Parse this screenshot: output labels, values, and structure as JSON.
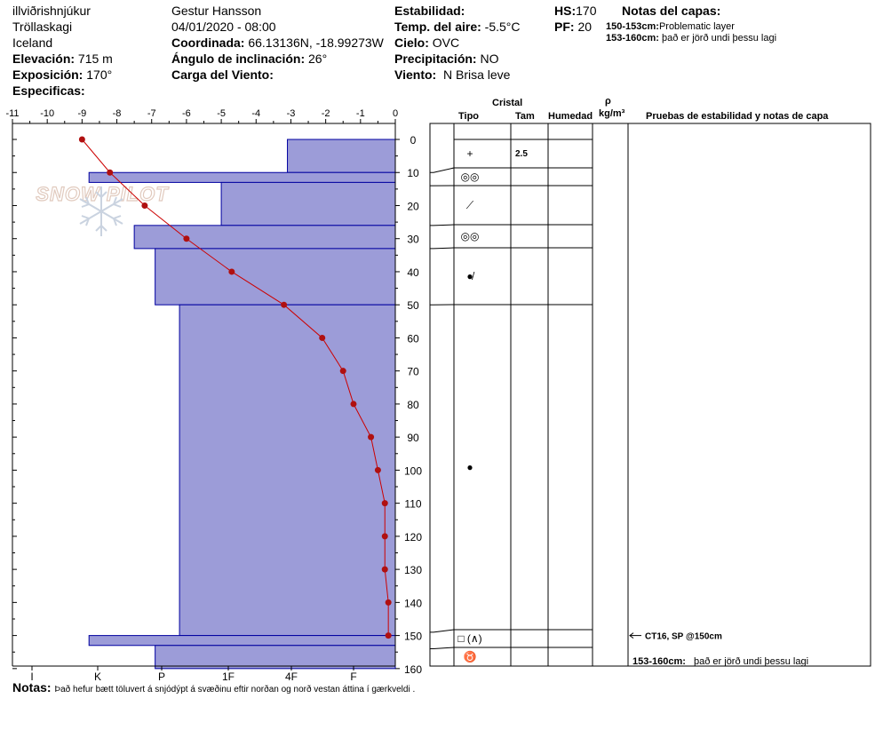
{
  "header": {
    "location": "illviðrishnjúkur",
    "region": "Tröllaskagi",
    "country": "Iceland",
    "elevation_label": "Elevación:",
    "elevation_value": "715 m",
    "aspect_label": "Exposición:",
    "aspect_value": "170°",
    "specifics_label": "Especificas:",
    "observer": "Gestur Hansson",
    "datetime": "04/01/2020 - 08:00",
    "coord_label": "Coordinada:",
    "coord_value": "66.13136N, -18.99273W",
    "slope_label": "Ángulo de inclinación:",
    "slope_value": "26°",
    "wind_load_label": "Carga del Viento:",
    "stability_label": "Estabilidad:",
    "air_temp_label": "Temp. del aire:",
    "air_temp_value": "-5.5°C",
    "sky_label": "Cielo:",
    "sky_value": "OVC",
    "precip_label": "Precipitación:",
    "precip_value": "NO",
    "wind_label": "Viento:",
    "wind_value": "N Brisa leve",
    "hs_label": "HS:",
    "hs_value": "170",
    "pf_label": "PF:",
    "pf_value": "20",
    "layer_notes_title": "Notas del capas:",
    "layer_notes": [
      {
        "range": "150-153cm:",
        "text": "Problematic layer"
      },
      {
        "range": "153-160cm:",
        "text": "það er jörð undi þessu lagi"
      }
    ]
  },
  "watermark": "SNOW PILOT",
  "table_headers": {
    "crystal": "Cristal",
    "type": "Tipo",
    "size": "Tam",
    "moisture": "Humedad",
    "rho": "ρ",
    "density_unit": "kg/m³",
    "tests": "Pruebas de estabilidad y notas de capa"
  },
  "layers": [
    {
      "top": 0,
      "bottom": 10,
      "symbol": "+",
      "size": "2.5"
    },
    {
      "top": 10,
      "bottom": 14,
      "symbol": "◎◎",
      "size": ""
    },
    {
      "top": 14,
      "bottom": 26,
      "symbol": "⟋",
      "size": ""
    },
    {
      "top": 26,
      "bottom": 33,
      "symbol": "◎◎",
      "size": ""
    },
    {
      "top": 33,
      "bottom": 50,
      "symbol": "●̸",
      "size": ""
    },
    {
      "top": 50,
      "bottom": 149,
      "symbol": "●",
      "size": ""
    },
    {
      "top": 149,
      "bottom": 154,
      "symbol": "□ (∧)",
      "size": ""
    },
    {
      "top": 154,
      "bottom": 160,
      "symbol": "♉",
      "size": ""
    }
  ],
  "tests": [
    {
      "depth": 150,
      "text": "CT16, SP @150cm"
    }
  ],
  "bottom_note": {
    "range": "153-160cm:",
    "text": "það er jörð undi þessu lagi"
  },
  "notes": {
    "label": "Notas:",
    "text": "Það hefur bætt töluvert á snjódýpt  á svæðinu eftir norðan og norð vestan áttina í gærkveldi ."
  },
  "chart_data": {
    "type": "line",
    "temperature_axis": {
      "ticks": [
        -11,
        -10,
        -9,
        -8,
        -7,
        -6,
        -5,
        -4,
        -3,
        -2,
        -1,
        0
      ],
      "range": [
        -11,
        0
      ]
    },
    "depth_axis": {
      "ticks": [
        0,
        10,
        20,
        30,
        40,
        50,
        60,
        70,
        80,
        90,
        100,
        110,
        120,
        130,
        140,
        150,
        160
      ],
      "range": [
        0,
        160
      ]
    },
    "hardness_axis": {
      "labels": [
        "I",
        "K",
        "P",
        "1F",
        "4F",
        "F"
      ]
    },
    "temperature_profile": {
      "depth": [
        0,
        10,
        20,
        30,
        40,
        50,
        60,
        70,
        80,
        90,
        100,
        110,
        120,
        130,
        140,
        150
      ],
      "temp": [
        -9.0,
        -8.2,
        -7.2,
        -6.0,
        -4.7,
        -3.2,
        -2.1,
        -1.5,
        -1.2,
        -0.7,
        -0.5,
        -0.3,
        -0.3,
        -0.3,
        -0.2,
        -0.2
      ]
    },
    "hardness_profile": [
      {
        "top": 0,
        "bottom": 10,
        "hardness": "4F"
      },
      {
        "top": 10,
        "bottom": 13,
        "hardness": "K"
      },
      {
        "top": 13,
        "bottom": 26,
        "hardness": "1F"
      },
      {
        "top": 26,
        "bottom": 33,
        "hardness": "K-"
      },
      {
        "top": 33,
        "bottom": 50,
        "hardness": "P"
      },
      {
        "top": 50,
        "bottom": 150,
        "hardness": "P-"
      },
      {
        "top": 150,
        "bottom": 153,
        "hardness": "K"
      },
      {
        "top": 153,
        "bottom": 160,
        "hardness": "P"
      }
    ],
    "hardness_profile_values": [
      {
        "top": 0,
        "bottom": 10,
        "value": -3.1
      },
      {
        "top": 10,
        "bottom": 13,
        "value": -8.8
      },
      {
        "top": 13,
        "bottom": 26,
        "value": -5.0
      },
      {
        "top": 26,
        "bottom": 33,
        "value": -7.5
      },
      {
        "top": 33,
        "bottom": 50,
        "value": -6.9
      },
      {
        "top": 50,
        "bottom": 150,
        "value": -6.2
      },
      {
        "top": 150,
        "bottom": 153,
        "value": -8.8
      },
      {
        "top": 153,
        "bottom": 160,
        "value": -6.9
      }
    ],
    "colors": {
      "hardness_fill": "#9c9cd8",
      "hardness_stroke": "#0000a0",
      "temp_line": "#cc0000",
      "temp_point": "#b01010"
    }
  }
}
